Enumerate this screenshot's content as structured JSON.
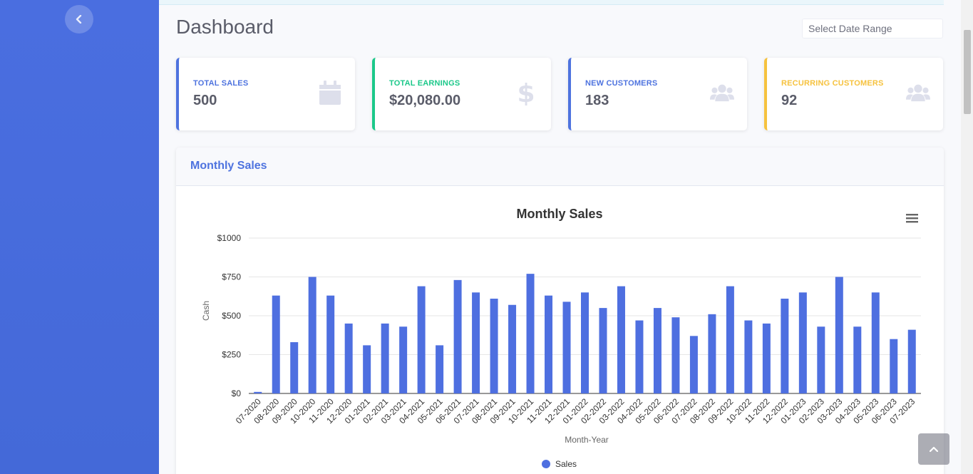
{
  "sidebar": {
    "toggle_icon": "chevron-left-icon"
  },
  "header": {
    "title": "Dashboard",
    "date_range_placeholder": "Select Date Range"
  },
  "cards": [
    {
      "label": "TOTAL SALES",
      "value": "500",
      "icon": "calendar-icon",
      "color": "#4e73df"
    },
    {
      "label": "TOTAL EARNINGS",
      "value": "$20,080.00",
      "icon": "dollar-icon",
      "color": "#1cc88a"
    },
    {
      "label": "NEW CUSTOMERS",
      "value": "183",
      "icon": "users-icon",
      "color": "#4e73df"
    },
    {
      "label": "RECURRING CUSTOMERS",
      "value": "92",
      "icon": "users-icon",
      "color": "#f6c23e"
    }
  ],
  "panel": {
    "title": "Monthly Sales",
    "menu_icon": "hamburger-menu-icon"
  },
  "chart_data": {
    "type": "bar",
    "title": "Monthly Sales",
    "xlabel": "Month-Year",
    "ylabel": "Cash",
    "ylim": [
      0,
      1000
    ],
    "yticks": [
      "$0",
      "$250",
      "$500",
      "$750",
      "$1000"
    ],
    "grid": true,
    "legend_position": "bottom",
    "categories": [
      "07-2020",
      "08-2020",
      "09-2020",
      "10-2020",
      "11-2020",
      "12-2020",
      "01-2021",
      "02-2021",
      "03-2021",
      "04-2021",
      "05-2021",
      "06-2021",
      "07-2021",
      "08-2021",
      "09-2021",
      "10-2021",
      "11-2021",
      "12-2021",
      "01-2022",
      "02-2022",
      "03-2022",
      "04-2022",
      "05-2022",
      "06-2022",
      "07-2022",
      "08-2022",
      "09-2022",
      "10-2022",
      "11-2022",
      "12-2022",
      "01-2023",
      "02-2023",
      "03-2023",
      "04-2023",
      "05-2023",
      "06-2023",
      "07-2023"
    ],
    "series": [
      {
        "name": "Sales",
        "color": "#4e6fe0",
        "values": [
          10,
          630,
          330,
          750,
          630,
          450,
          310,
          450,
          430,
          690,
          310,
          730,
          650,
          610,
          570,
          770,
          630,
          590,
          650,
          550,
          690,
          470,
          550,
          490,
          370,
          510,
          690,
          470,
          450,
          610,
          650,
          430,
          750,
          430,
          650,
          350,
          410
        ]
      }
    ]
  },
  "scroll_top_icon": "chevron-up-icon"
}
